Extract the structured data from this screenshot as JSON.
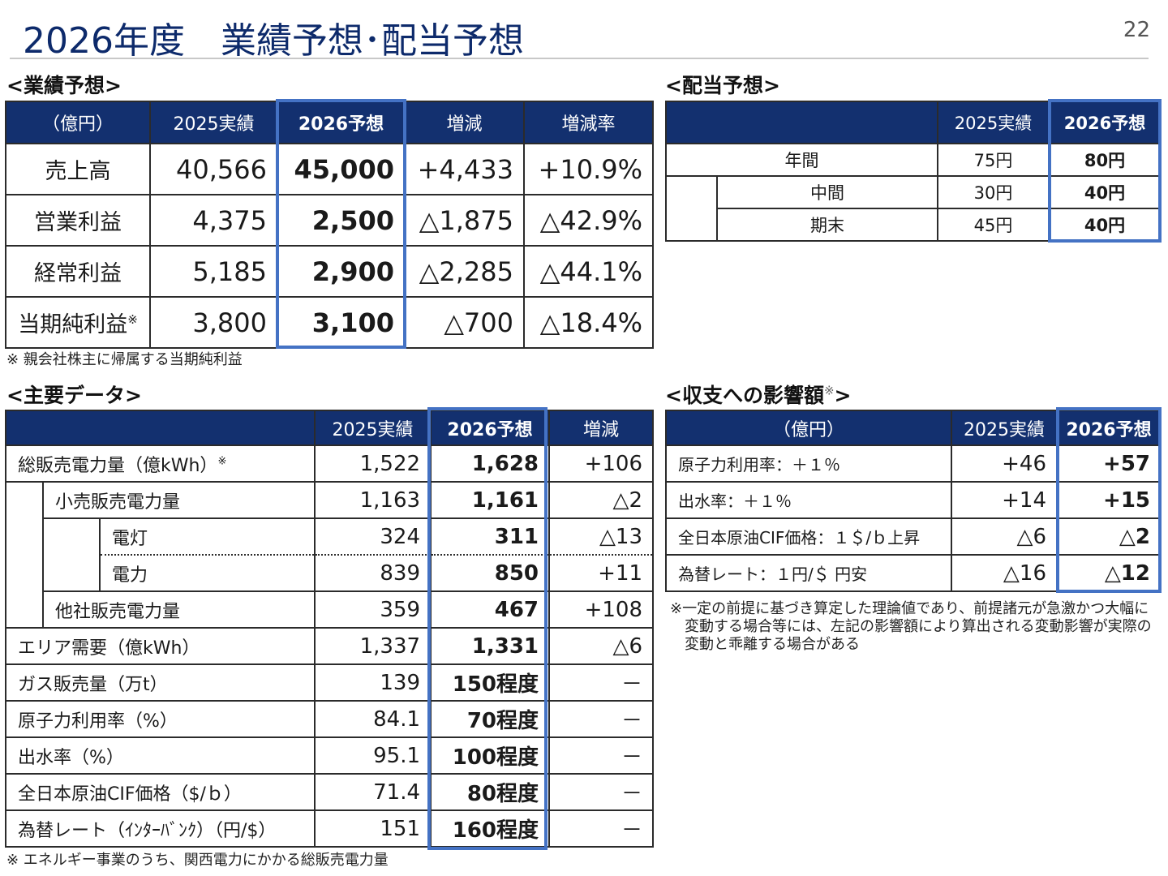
{
  "header": {
    "title": "2026年度　業績予想･配当予想",
    "page_number": "22"
  },
  "earnings": {
    "heading": "<業績予想>",
    "columns": [
      "（億円）",
      "2025実績",
      "2026予想",
      "増減",
      "増減率"
    ],
    "rows": [
      {
        "label": "売上高",
        "mark": "",
        "v2025": "40,566",
        "v2026": "45,000",
        "diff": "+4,433",
        "rate": "+10.9%"
      },
      {
        "label": "営業利益",
        "mark": "",
        "v2025": "4,375",
        "v2026": "2,500",
        "diff": "△1,875",
        "rate": "△42.9%"
      },
      {
        "label": "経常利益",
        "mark": "",
        "v2025": "5,185",
        "v2026": "2,900",
        "diff": "△2,285",
        "rate": "△44.1%"
      },
      {
        "label": "当期純利益",
        "mark": "※",
        "v2025": "3,800",
        "v2026": "3,100",
        "diff": "△700",
        "rate": "△18.4%"
      }
    ],
    "note": "※ 親会社株主に帰属する当期純利益"
  },
  "dividend": {
    "heading": "<配当予想>",
    "columns": [
      "",
      "2025実績",
      "2026予想"
    ],
    "rows": [
      {
        "label": "年間",
        "v2025": "75円",
        "v2026": "80円"
      },
      {
        "label": "中間",
        "v2025": "30円",
        "v2026": "40円"
      },
      {
        "label": "期末",
        "v2025": "45円",
        "v2026": "40円"
      }
    ]
  },
  "keydata": {
    "heading": "<主要データ>",
    "columns": [
      "",
      "2025実績",
      "2026予想",
      "増減"
    ],
    "rows": [
      {
        "label": "総販売電力量（億kWh）",
        "mark": "※",
        "v2025": "1,522",
        "v2026": "1,628",
        "diff": "+106"
      },
      {
        "label": "小売販売電力量",
        "v2025": "1,163",
        "v2026": "1,161",
        "diff": "△2"
      },
      {
        "label": "電灯",
        "v2025": "324",
        "v2026": "311",
        "diff": "△13"
      },
      {
        "label": "電力",
        "v2025": "839",
        "v2026": "850",
        "diff": "+11"
      },
      {
        "label": "他社販売電力量",
        "v2025": "359",
        "v2026": "467",
        "diff": "+108"
      },
      {
        "label": "エリア需要（億kWh）",
        "v2025": "1,337",
        "v2026": "1,331",
        "diff": "△6"
      },
      {
        "label": "ガス販売量（万t）",
        "v2025": "139",
        "v2026": "150程度",
        "diff": "－"
      },
      {
        "label": "原子力利用率（%）",
        "v2025": "84.1",
        "v2026": "70程度",
        "diff": "－"
      },
      {
        "label": "出水率（%）",
        "v2025": "95.1",
        "v2026": "100程度",
        "diff": "－"
      },
      {
        "label": "全日本原油CIF価格（$/ｂ）",
        "v2025": "71.4",
        "v2026": "80程度",
        "diff": "－"
      },
      {
        "label": "為替レート（ｲﾝﾀｰﾊﾞﾝｸ）（円/$）",
        "v2025": "151",
        "v2026": "160程度",
        "diff": "－"
      }
    ],
    "note": "※ エネルギー事業のうち、関西電力にかかる総販売電力量"
  },
  "impact": {
    "heading": "<収支への影響額",
    "heading_mark": "※",
    "heading_end": ">",
    "columns": [
      "（億円）",
      "2025実績",
      "2026予想"
    ],
    "rows": [
      {
        "label": "原子力利用率：＋１％",
        "v2025": "+46",
        "v2026": "+57"
      },
      {
        "label": "出水率：＋１％",
        "v2025": "+14",
        "v2026": "+15"
      },
      {
        "label": "全日本原油CIF価格：１＄/ｂ上昇",
        "v2025": "△6",
        "v2026": "△2"
      },
      {
        "label": "為替レート：１円/＄ 円安",
        "v2025": "△16",
        "v2026": "△12"
      }
    ],
    "note_lines": [
      "※一定の前提に基づき算定した理論値であり、前提諸元が急激かつ大幅に",
      "変動する場合等には、左記の影響額により算出される変動影響が実際の",
      "変動と乖離する場合がある"
    ]
  }
}
